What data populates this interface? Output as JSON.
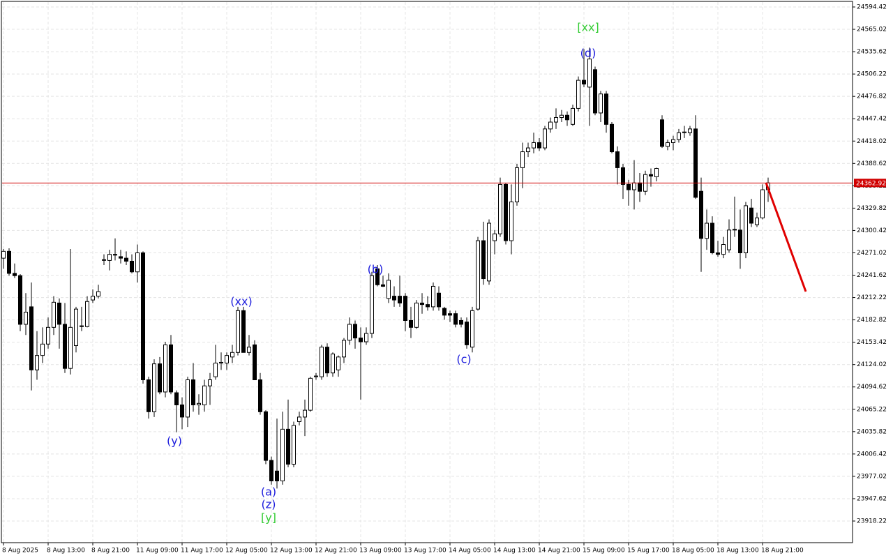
{
  "chart_data": {
    "type": "candlestick",
    "categories": [
      "8 Aug 2025",
      null,
      null,
      null,
      null,
      null,
      null,
      null,
      "8 Aug 13:00",
      null,
      null,
      null,
      null,
      null,
      null,
      null,
      "8 Aug 21:00",
      null,
      null,
      null,
      null,
      null,
      null,
      null,
      "11 Aug 09:00",
      null,
      null,
      null,
      null,
      null,
      null,
      null,
      "11 Aug 17:00",
      null,
      null,
      null,
      null,
      null,
      null,
      null,
      "12 Aug 05:00",
      null,
      null,
      null,
      null,
      null,
      null,
      null,
      "12 Aug 13:00",
      null,
      null,
      null,
      null,
      null,
      null,
      null,
      "12 Aug 21:00",
      null,
      null,
      null,
      null,
      null,
      null,
      null,
      "13 Aug 09:00",
      null,
      null,
      null,
      null,
      null,
      null,
      null,
      "13 Aug 17:00",
      null,
      null,
      null,
      null,
      null,
      null,
      null,
      "14 Aug 05:00",
      null,
      null,
      null,
      null,
      null,
      null,
      null,
      "14 Aug 13:00",
      null,
      null,
      null,
      null,
      null,
      null,
      null,
      "14 Aug 21:00",
      null,
      null,
      null,
      null,
      null,
      null,
      null,
      "15 Aug 09:00",
      null,
      null,
      null,
      null,
      null,
      null,
      null,
      "15 Aug 17:00",
      null,
      null,
      null,
      null,
      null,
      null,
      null,
      "18 Aug 05:00",
      null,
      null,
      null,
      null,
      null,
      null,
      null,
      "18 Aug 13:00",
      null,
      null,
      null,
      null,
      null,
      null,
      null,
      "18 Aug 21:00",
      null
    ],
    "open": [
      24264,
      24273,
      24244,
      24241,
      24177,
      24200,
      24117,
      24136,
      24151,
      24173,
      24205,
      24177,
      24119,
      24149,
      24175,
      24174,
      24209,
      24214,
      24262,
      24261,
      24269,
      24266,
      24264,
      24260,
      24246,
      24271,
      24104,
      24062,
      24125,
      24088,
      24150,
      24087,
      24071,
      24055,
      24104,
      24071,
      24071,
      24096,
      24108,
      24126,
      24126,
      24134,
      24140,
      24195,
      24140,
      24150,
      24104,
      24062,
      23998,
      23984,
      23971,
      24039,
      23993,
      24049,
      24055,
      24064,
      24108,
      24108,
      24147,
      24113,
      24117,
      24134,
      24156,
      24177,
      24159,
      24154,
      24165,
      24250,
      24229,
      24211,
      24214,
      24214,
      24214,
      24182,
      24173,
      24205,
      24203,
      24200,
      24218,
      24198,
      24191,
      24191,
      24182,
      24180,
      24147,
      24197,
      24287,
      24234,
      24287,
      24296,
      24361,
      24287,
      24338,
      24383,
      24404,
      24409,
      24416,
      24409,
      24434,
      24443,
      24449,
      24452,
      24440,
      24461,
      24498,
      24489,
      24512,
      24455,
      24480,
      24440,
      24404,
      24383,
      24361,
      24354,
      24363,
      24352,
      24374,
      24371,
      24446,
      24411,
      24416,
      24420,
      24429,
      24429,
      24434,
      24352,
      24290,
      24310,
      24271,
      24269,
      24275,
      24301,
      24301,
      24271,
      24330,
      24308,
      24317,
      24354
    ],
    "high": [
      24276,
      24277,
      24257,
      24243,
      24218,
      24232,
      24168,
      24173,
      24186,
      24214,
      24211,
      24205,
      24276,
      24200,
      24200,
      24214,
      24223,
      24229,
      24269,
      24275,
      24290,
      24275,
      24273,
      24269,
      24282,
      24273,
      24108,
      24131,
      24134,
      24154,
      24163,
      24090,
      24081,
      24108,
      24126,
      24085,
      24104,
      24113,
      24150,
      24140,
      24140,
      24150,
      24200,
      24200,
      24163,
      24156,
      24113,
      24064,
      24003,
      24053,
      24062,
      24078,
      24049,
      24062,
      24078,
      24108,
      24113,
      24150,
      24152,
      24140,
      24136,
      24159,
      24186,
      24182,
      24173,
      24173,
      24246,
      24255,
      24241,
      24244,
      24227,
      24241,
      24218,
      24200,
      24209,
      24218,
      24214,
      24232,
      24227,
      24200,
      24195,
      24195,
      24186,
      24186,
      24200,
      24292,
      24312,
      24315,
      24301,
      24370,
      24363,
      24361,
      24388,
      24416,
      24416,
      24429,
      24422,
      24438,
      24449,
      24461,
      24459,
      24457,
      24466,
      24503,
      24539,
      24541,
      24516,
      24484,
      24484,
      24443,
      24411,
      24388,
      24367,
      24393,
      24376,
      24379,
      24382,
      24383,
      24452,
      24420,
      24425,
      24434,
      24438,
      24438,
      24452,
      24370,
      24328,
      24319,
      24287,
      24292,
      24315,
      24345,
      24328,
      24338,
      24342,
      24324,
      24361,
      24370
    ],
    "low": [
      24250,
      24241,
      24238,
      24168,
      24163,
      24090,
      24104,
      24126,
      24145,
      24163,
      24145,
      24113,
      24111,
      24140,
      24168,
      24173,
      24205,
      24211,
      24255,
      24248,
      24261,
      24257,
      24255,
      24244,
      24232,
      24099,
      24053,
      24055,
      24085,
      24081,
      24085,
      24035,
      24039,
      24042,
      24062,
      24058,
      24062,
      24071,
      24104,
      24117,
      24117,
      24126,
      24136,
      24140,
      24136,
      24104,
      24058,
      23993,
      23966,
      23961,
      23966,
      23989,
      23989,
      24044,
      24030,
      24062,
      24104,
      24104,
      24108,
      24108,
      24108,
      24126,
      24150,
      24145,
      24078,
      24150,
      24159,
      24227,
      24226,
      24205,
      24200,
      24200,
      24168,
      24159,
      24171,
      24191,
      24195,
      24195,
      24195,
      24183,
      24180,
      24173,
      24173,
      24145,
      24140,
      24195,
      24229,
      24229,
      24269,
      24292,
      24282,
      24269,
      24333,
      24356,
      24397,
      24402,
      24405,
      24406,
      24429,
      24434,
      24443,
      24438,
      24438,
      24457,
      24489,
      24438,
      24452,
      24443,
      24429,
      24402,
      24361,
      24342,
      24333,
      24328,
      24338,
      24347,
      24358,
      24365,
      24409,
      24406,
      24406,
      24416,
      24422,
      24425,
      24342,
      24246,
      24275,
      24269,
      24266,
      24264,
      24271,
      24292,
      24250,
      24264,
      24305,
      24305,
      24315,
      24338
    ],
    "close": [
      24273,
      24244,
      24241,
      24177,
      24193,
      24117,
      24136,
      24151,
      24173,
      24206,
      24177,
      24119,
      24173,
      24197,
      24174,
      24207,
      24214,
      24220,
      24262,
      24269,
      24268,
      24264,
      24260,
      24246,
      24271,
      24104,
      24062,
      24125,
      24088,
      24150,
      24088,
      24071,
      24055,
      24104,
      24071,
      24073,
      24096,
      24104,
      24126,
      24127,
      24136,
      24140,
      24195,
      24140,
      24147,
      24104,
      24062,
      23998,
      23971,
      23971,
      24039,
      23993,
      24044,
      24055,
      24064,
      24106,
      24109,
      24147,
      24113,
      24138,
      24134,
      24156,
      24177,
      24159,
      24154,
      24165,
      24241,
      24229,
      24227,
      24235,
      24209,
      24205,
      24182,
      24173,
      24205,
      24203,
      24200,
      24227,
      24200,
      24189,
      24189,
      24177,
      24177,
      24150,
      24195,
      24287,
      24237,
      24310,
      24296,
      24361,
      24287,
      24338,
      24383,
      24404,
      24409,
      24416,
      24409,
      24434,
      24443,
      24449,
      24452,
      24446,
      24461,
      24498,
      24493,
      24526,
      24455,
      24480,
      24440,
      24404,
      24383,
      24361,
      24354,
      24363,
      24352,
      24374,
      24372,
      24382,
      24411,
      24416,
      24420,
      24429,
      24430,
      24434,
      24344,
      24290,
      24310,
      24271,
      24269,
      24282,
      24301,
      24302,
      24271,
      24333,
      24310,
      24317,
      24354,
      24363
    ],
    "ylim": [
      23889.78,
      24601.76
    ],
    "yticks": [
      23918.22,
      23947.62,
      23977.02,
      24006.42,
      24035.82,
      24065.22,
      24094.62,
      24124.02,
      24153.42,
      24182.82,
      24212.22,
      24241.62,
      24271.02,
      24300.42,
      24329.82,
      24359.22,
      24388.62,
      24418.02,
      24447.42,
      24476.82,
      24506.22,
      24535.62,
      24565.02,
      24594.42
    ],
    "grid": true,
    "last_price": 24362.92,
    "up_color": "#ffffff",
    "down_color": "#000000",
    "last_price_color": "#d00000",
    "annotations": [
      {
        "text": "[xx]",
        "color": "#33cc33"
      },
      {
        "text": "(d)",
        "color": "#1a1adc"
      },
      {
        "text": "(xx)",
        "color": "#1a1adc"
      },
      {
        "text": "(y)",
        "color": "#1a1adc"
      },
      {
        "text": "(a)",
        "color": "#1a1adc"
      },
      {
        "text": "(z)",
        "color": "#1a1adc"
      },
      {
        "text": "[y]",
        "color": "#33cc33"
      },
      {
        "text": "(b)",
        "color": "#1a1adc"
      },
      {
        "text": "(c)",
        "color": "#1a1adc"
      }
    ]
  }
}
